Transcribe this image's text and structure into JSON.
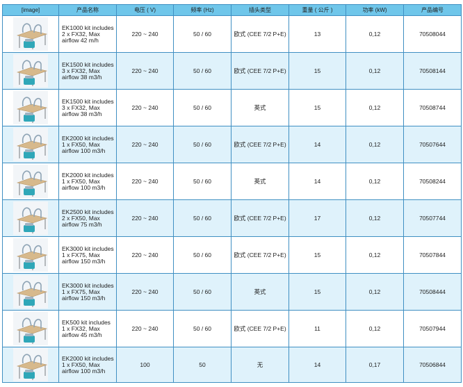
{
  "headers": [
    "[image]",
    "产品名称",
    "电压 ( V)",
    "频率 (Hz)",
    "插头类型",
    "重量 ( 公斤 )",
    "功率 (kW)",
    "产品编号"
  ],
  "rows": [
    {
      "name": [
        "EK1000 kit includes",
        "2 x FX32, Max",
        "airflow 42 m/h"
      ],
      "voltage": "220 ~ 240",
      "frequency": "50 / 60",
      "plug": "欧式 (CEE 7/2 P+E)",
      "weight": "13",
      "power": "0,12",
      "code": "70508044"
    },
    {
      "name": [
        "EK1500 kit includes",
        "3 x FX32, Max",
        "airflow 38 m3/h"
      ],
      "voltage": "220 ~ 240",
      "frequency": "50 / 60",
      "plug": "欧式 (CEE 7/2 P+E)",
      "weight": "15",
      "power": "0,12",
      "code": "70508144"
    },
    {
      "name": [
        "EK1500 kit includes",
        "3 x FX32, Max",
        "airflow 38 m3/h"
      ],
      "voltage": "220 ~ 240",
      "frequency": "50 / 60",
      "plug": "英式",
      "weight": "15",
      "power": "0,12",
      "code": "70508744"
    },
    {
      "name": [
        "EK2000 kit includes",
        "1 x FX50, Max",
        "airflow 100 m3/h"
      ],
      "voltage": "220 ~ 240",
      "frequency": "50 / 60",
      "plug": "欧式 (CEE 7/2 P+E)",
      "weight": "14",
      "power": "0,12",
      "code": "70507644"
    },
    {
      "name": [
        "EK2000 kit includes",
        "1 x FX50, Max",
        "airflow 100 m3/h"
      ],
      "voltage": "220 ~ 240",
      "frequency": "50 / 60",
      "plug": "英式",
      "weight": "14",
      "power": "0,12",
      "code": "70508244"
    },
    {
      "name": [
        "EK2500 kit includes",
        "2 x FX50, Max",
        "airflow 75 m3/h"
      ],
      "voltage": "220 ~ 240",
      "frequency": "50 / 60",
      "plug": "欧式 (CEE 7/2 P+E)",
      "weight": "17",
      "power": "0,12",
      "code": "70507744"
    },
    {
      "name": [
        "EK3000 kit includes",
        "1 x FX75, Max",
        "airflow 150 m3/h"
      ],
      "voltage": "220 ~ 240",
      "frequency": "50 / 60",
      "plug": "欧式 (CEE 7/2 P+E)",
      "weight": "15",
      "power": "0,12",
      "code": "70507844"
    },
    {
      "name": [
        "EK3000 kit includes",
        "1 x FX75, Max",
        "airflow 150 m3/h"
      ],
      "voltage": "220 ~ 240",
      "frequency": "50 / 60",
      "plug": "英式",
      "weight": "15",
      "power": "0,12",
      "code": "70508444"
    },
    {
      "name": [
        "EK500 kit includes",
        "1 x FX32, Max",
        "airflow 45 m3/h"
      ],
      "voltage": "220 ~ 240",
      "frequency": "50 / 60",
      "plug": "欧式 (CEE 7/2 P+E)",
      "weight": "11",
      "power": "0,12",
      "code": "70507944"
    },
    {
      "name": [
        "EK2000 kit includes",
        "1 x FX50, Max",
        "airflow 100 m3/h"
      ],
      "voltage": "100",
      "frequency": "50",
      "plug": "无",
      "weight": "14",
      "power": "0,17",
      "code": "70506844"
    }
  ],
  "colors": {
    "header_bg": "#6fc6ea",
    "alt_row_bg": "#dff2fb",
    "border": "#3f8fc2"
  }
}
